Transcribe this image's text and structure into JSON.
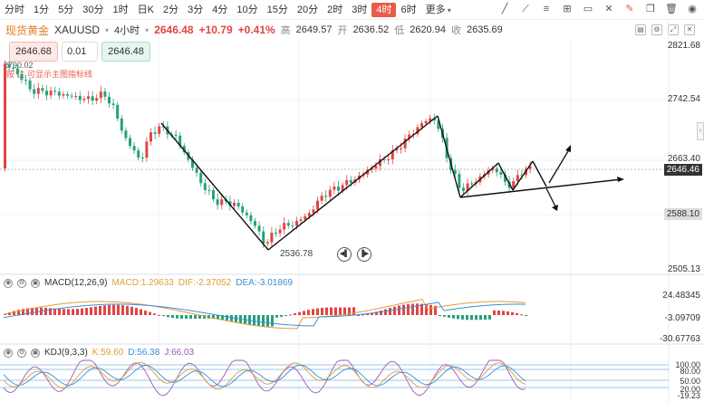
{
  "toolbar": {
    "periods": [
      "分时",
      "1分",
      "5分",
      "30分",
      "1时",
      "日K",
      "2分",
      "3分",
      "4分",
      "10分",
      "15分",
      "20分",
      "2时",
      "3时",
      "4时",
      "6时",
      "更多"
    ],
    "active_index": 14,
    "tools": [
      "draw-line-icon",
      "trend-icon",
      "ruler-icon",
      "measure-icon",
      "rect-icon",
      "crosshair-icon",
      "edit-icon",
      "copy-icon",
      "delete-icon",
      "eye-icon"
    ]
  },
  "title": {
    "name": "现货黄金",
    "symbol": "XAUUSD",
    "timeframe": "4小时",
    "price": "2646.48",
    "change": "+10.79",
    "change_pct": "+0.41%",
    "high_label": "高",
    "high": "2649.57",
    "open_label": "开",
    "open": "2636.52",
    "low_label": "低",
    "low": "2620.94",
    "close_label": "收",
    "close": "2635.69"
  },
  "order": {
    "sell_price": "2646.68",
    "quantity": "0.01",
    "buy_price": "2646.48"
  },
  "main_chart": {
    "notes": [
      "2790.02",
      "按 住 可显示主图指标线"
    ],
    "axis_labels": [
      "2821.68",
      "2742.54",
      "2663.40",
      "2588.10",
      "2505.13"
    ],
    "current_price": "2646.46",
    "low_marker": "2536.78"
  },
  "macd": {
    "name": "MACD(12,26,9)",
    "macd_label": "MACD:",
    "macd": "1.29633",
    "dif_label": "DIF:",
    "dif": "-2.37052",
    "dea_label": "DEA:",
    "dea": "-3.01869",
    "axis_labels": [
      "24.48345",
      "-3.09709",
      "-30.67763"
    ]
  },
  "kdj": {
    "name": "KDJ(9,3,3)",
    "k_label": "K:",
    "k": "59.60",
    "d_label": "D:",
    "d": "56.38",
    "j_label": "J:",
    "j": "66.03",
    "axis_labels": [
      "100.00",
      "80.00",
      "50.00",
      "20.00",
      "-19.23"
    ]
  },
  "colors": {
    "up": "#e04545",
    "down": "#26a17b",
    "accent": "#e85c4a",
    "dif": "#e39b3a",
    "dea": "#3a8fd6",
    "j": "#9b59b6"
  }
}
